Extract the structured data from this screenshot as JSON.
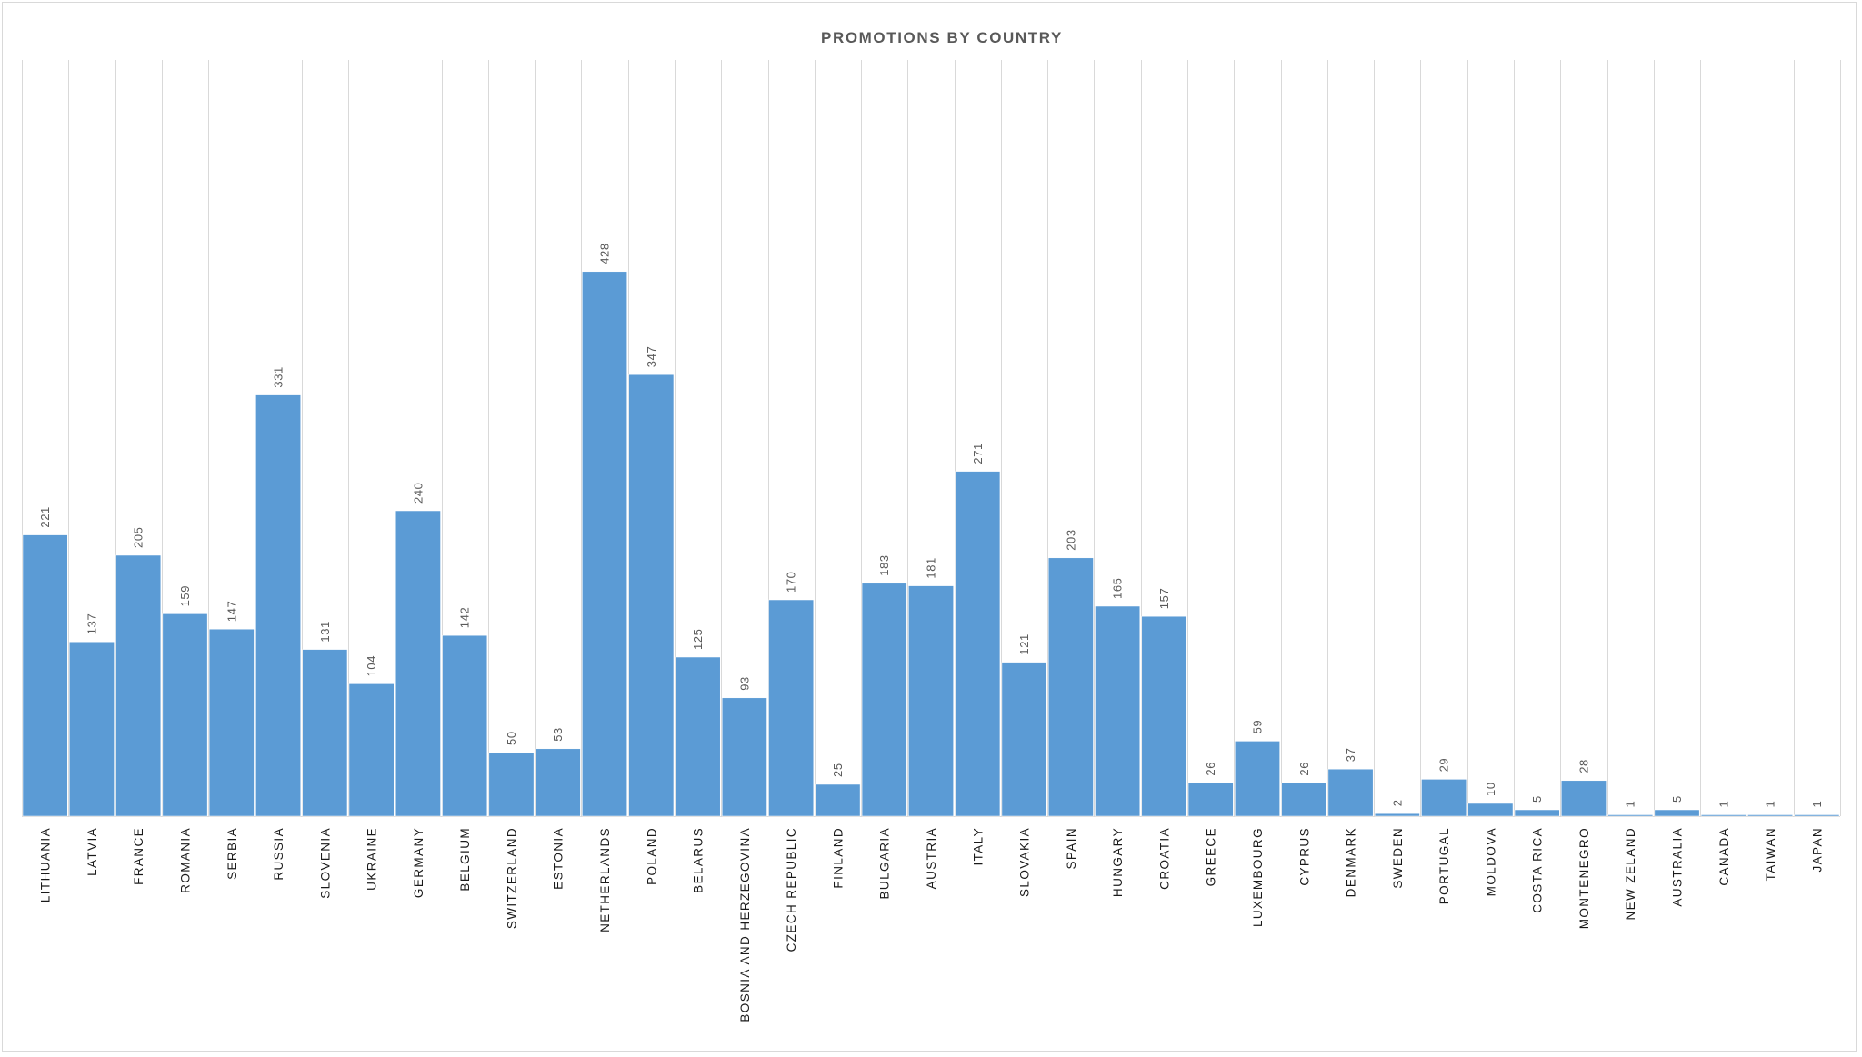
{
  "chart_data": {
    "type": "bar",
    "title": "PROMOTIONS BY COUNTRY",
    "xlabel": "",
    "ylabel": "",
    "ylim": [
      0,
      440
    ],
    "grid": "vertical",
    "legend": "none",
    "bar_color": "#5B9BD5",
    "categories": [
      "LITHUANIA",
      "LATVIA",
      "FRANCE",
      "ROMANIA",
      "SERBIA",
      "RUSSIA",
      "SLOVENIA",
      "UKRAINE",
      "GERMANY",
      "BELGIUM",
      "SWITZERLAND",
      "ESTONIA",
      "NETHERLANDS",
      "POLAND",
      "BELARUS",
      "BOSNIA AND HERZEGOVINA",
      "CZECH REPUBLIC",
      "FINLAND",
      "BULGARIA",
      "AUSTRIA",
      "ITALY",
      "SLOVAKIA",
      "SPAIN",
      "HUNGARY",
      "CROATIA",
      "GREECE",
      "LUXEMBOURG",
      "CYPRUS",
      "DENMARK",
      "SWEDEN",
      "PORTUGAL",
      "MOLDOVA",
      "COSTA RICA",
      "MONTENEGRO",
      "NEW ZELAND",
      "AUSTRALIA",
      "CANADA",
      "TAIWAN",
      "JAPAN"
    ],
    "values": [
      221,
      137,
      205,
      159,
      147,
      331,
      131,
      104,
      240,
      142,
      50,
      53,
      428,
      347,
      125,
      93,
      170,
      25,
      183,
      181,
      271,
      121,
      203,
      165,
      157,
      26,
      59,
      26,
      37,
      2,
      29,
      10,
      5,
      28,
      1,
      5,
      1,
      1,
      1
    ],
    "data_labels": [
      "221",
      "137",
      "205",
      "159",
      "147",
      "331",
      "131",
      "104",
      "240",
      "142",
      "50",
      "53",
      "428",
      "347",
      "125",
      "93",
      "170",
      "25",
      "183",
      "181",
      "271",
      "121",
      "203",
      "165",
      "157",
      "26",
      "59",
      "26",
      "37",
      "2",
      "29",
      "10",
      "5",
      "28",
      "1",
      "5",
      "1",
      "1",
      "1"
    ]
  }
}
